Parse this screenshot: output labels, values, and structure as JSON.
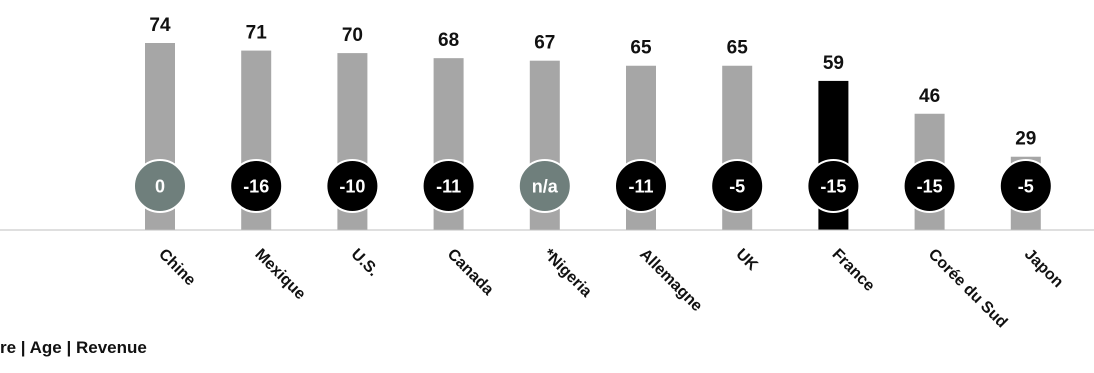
{
  "chart_data": {
    "type": "bar",
    "categories": [
      "Chine",
      "Mexique",
      "U.S.",
      "Canada",
      "*Nigeria",
      "Allemagne",
      "UK",
      "France",
      "Corée du Sud",
      "Japon"
    ],
    "values": [
      74,
      71,
      70,
      68,
      67,
      65,
      65,
      59,
      46,
      29
    ],
    "changes": [
      "0",
      "-16",
      "-10",
      "-11",
      "n/a",
      "-11",
      "-5",
      "-15",
      "-15",
      "-5"
    ],
    "change_badge_colors": [
      "#6f7f7c",
      "#000000",
      "#000000",
      "#000000",
      "#6f7f7c",
      "#000000",
      "#000000",
      "#000000",
      "#000000",
      "#000000"
    ],
    "highlight": "France",
    "colors": {
      "bar": "#a6a6a6",
      "highlight_bar": "#000000",
      "axis": "#bfbfbf"
    },
    "ylim": [
      0,
      80
    ],
    "title": "",
    "xlabel": "",
    "ylabel": ""
  },
  "footer": {
    "text": "re | Age | Revenue"
  }
}
